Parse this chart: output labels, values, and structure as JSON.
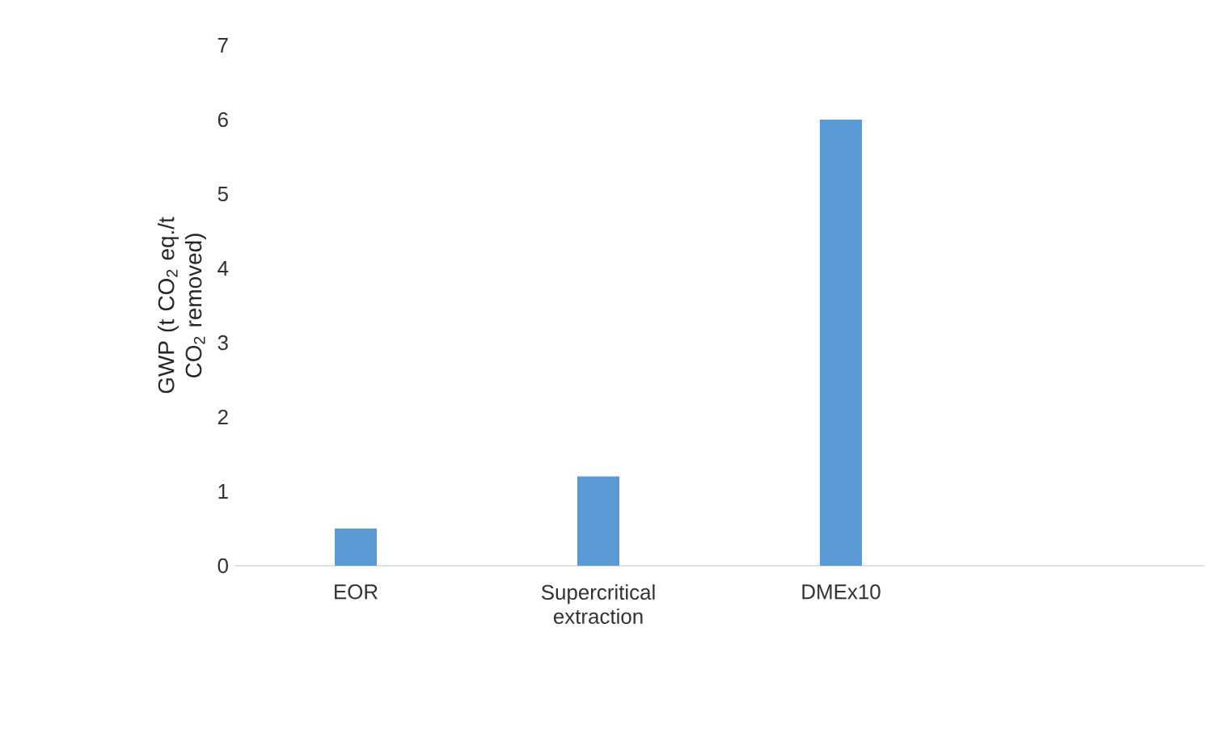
{
  "chart_data": {
    "type": "bar",
    "ylabel": "GWP (t CO$_{2}$ eq./t CO$_{2}$ removed)",
    "categories": [
      "EOR",
      "Supercritical extraction",
      "DMEx10",
      null
    ],
    "values": [
      0.5,
      1.2,
      6,
      null
    ],
    "color": "#5b9bd5",
    "ylim": [
      0,
      7
    ],
    "yticks": [
      0,
      1,
      2,
      3,
      4,
      5,
      6,
      7
    ],
    "grid": false
  }
}
